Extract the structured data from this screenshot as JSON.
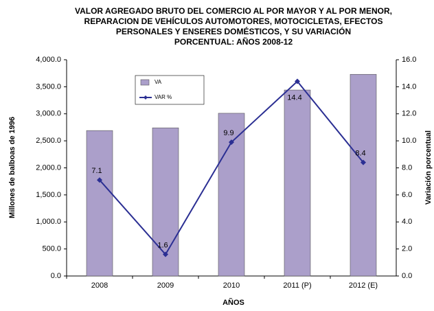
{
  "chart_data": {
    "type": "bar_line",
    "title": [
      "VALOR AGREGADO BRUTO DEL COMERCIO AL POR MAYOR Y AL POR MENOR,",
      "REPARACION DE VEHÍCULOS AUTOMOTORES, MOTOCICLETAS, EFECTOS",
      "PERSONALES Y ENSERES DOMÉSTICOS,  Y SU VARIACIÓN",
      "PORCENTUAL:  AÑOS  2008-12"
    ],
    "x_label": "AÑOS",
    "y_label": "Millones de balboas de 1996",
    "y2_label": "Variación porcentual",
    "categories": [
      "2008",
      "2009",
      "2010",
      "2011 (P)",
      "2012 (E)"
    ],
    "series": [
      {
        "name": "VA",
        "type": "bar",
        "color": "#ab9fca",
        "values": [
          2690,
          2740,
          3010,
          3440,
          3730
        ]
      },
      {
        "name": "VAR %",
        "type": "line",
        "axis": "y2",
        "color": "#2b2f93",
        "values": [
          7.1,
          1.6,
          9.9,
          14.4,
          8.4
        ]
      }
    ],
    "ylim": [
      0,
      4000
    ],
    "yticks": [
      {
        "value": 0,
        "label": "0.0"
      },
      {
        "value": 500,
        "label": "500.0"
      },
      {
        "value": 1000,
        "label": "1,000.0"
      },
      {
        "value": 1500,
        "label": "1,500.0"
      },
      {
        "value": 2000,
        "label": "2,000.0"
      },
      {
        "value": 2500,
        "label": "2,500.0"
      },
      {
        "value": 3000,
        "label": "3,000.0"
      },
      {
        "value": 3500,
        "label": "3,500.0"
      },
      {
        "value": 4000,
        "label": "4,000.0"
      }
    ],
    "y2lim": [
      0,
      16
    ],
    "y2ticks": [
      {
        "value": 0,
        "label": "0.0"
      },
      {
        "value": 2,
        "label": "2.0"
      },
      {
        "value": 4,
        "label": "4.0"
      },
      {
        "value": 6,
        "label": "6.0"
      },
      {
        "value": 8,
        "label": "8.0"
      },
      {
        "value": 10,
        "label": "10.0"
      },
      {
        "value": 12,
        "label": "12.0"
      },
      {
        "value": 14,
        "label": "14.0"
      },
      {
        "value": 16,
        "label": "16.0"
      }
    ],
    "legend": "upper left"
  }
}
